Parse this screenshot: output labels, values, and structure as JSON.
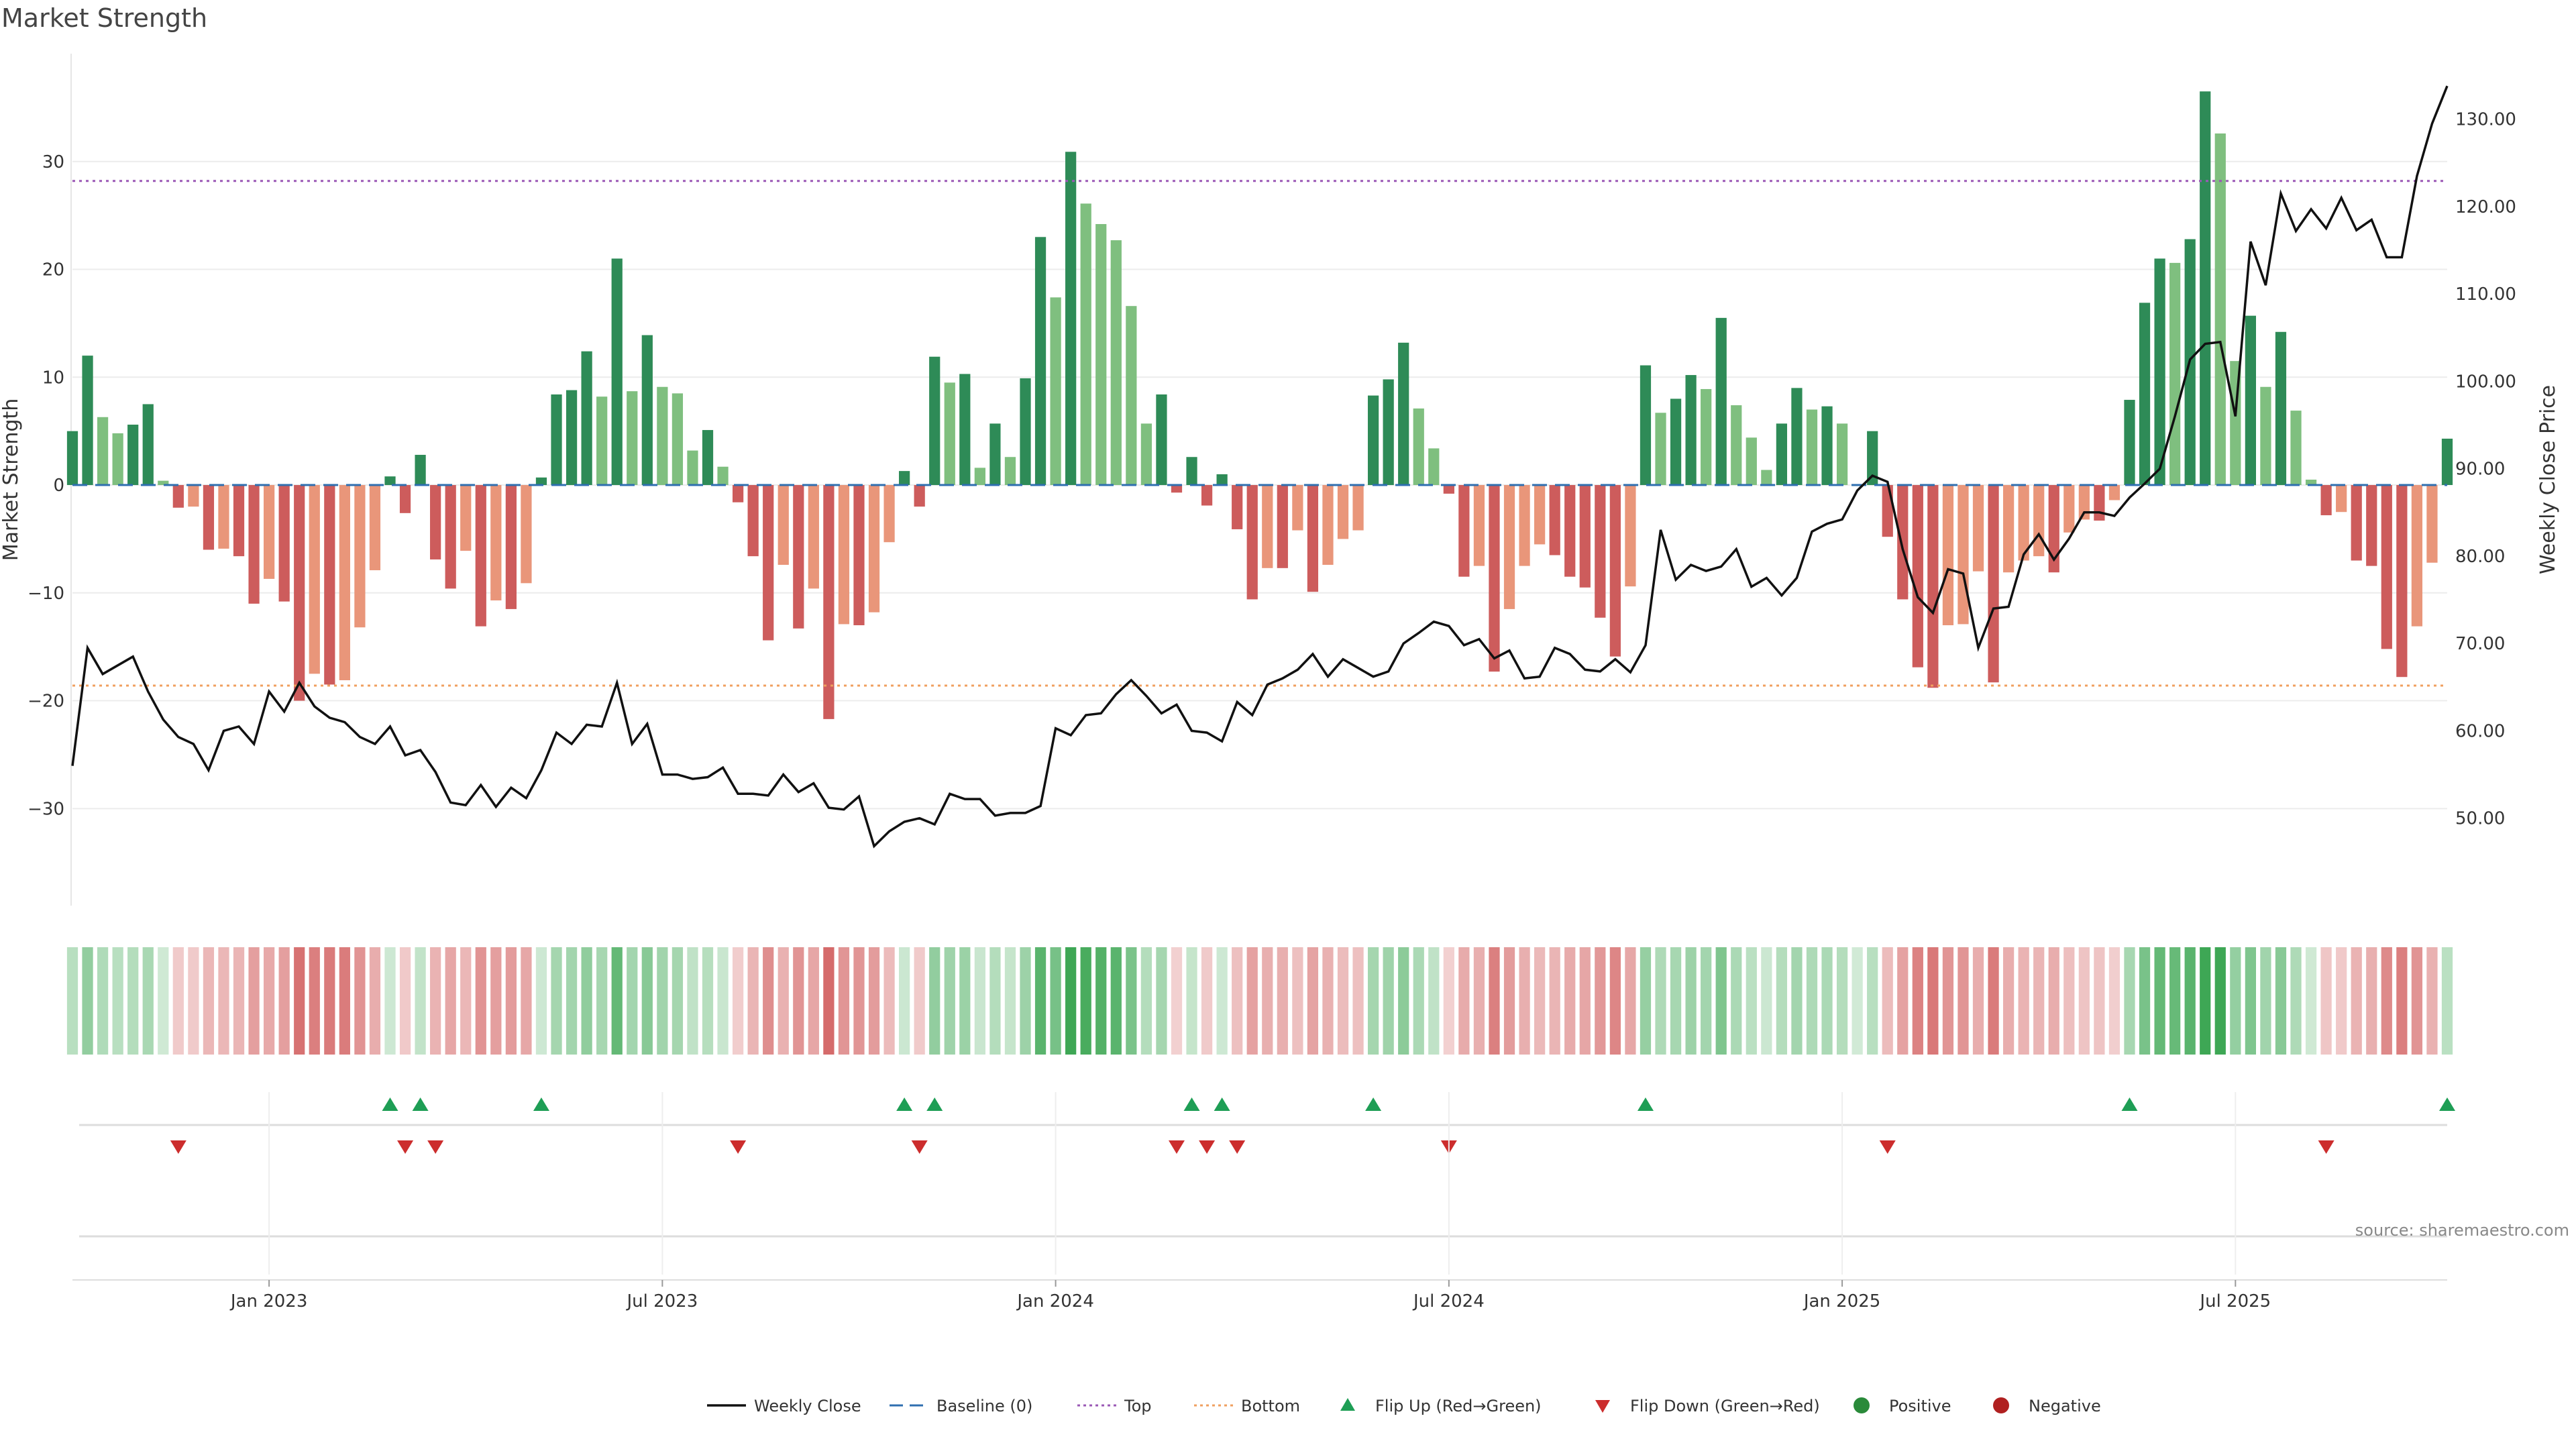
{
  "chart_data": {
    "type": "bar",
    "title": "Market Strength",
    "ylabel_left": "Market Strength",
    "ylabel_right": "Weekly Close Price",
    "y_left_range": [
      -39,
      40
    ],
    "y_left_ticks": [
      30,
      20,
      10,
      0,
      -10,
      -20,
      -30
    ],
    "y_right_range": [
      40,
      137.5
    ],
    "y_right_ticks": [
      130,
      120,
      110,
      100,
      90,
      80,
      70,
      60,
      50
    ],
    "top_level": 28.2,
    "bottom_level": -18.6,
    "x_labels": [
      {
        "label": "Jan 2023",
        "week": 13
      },
      {
        "label": "Jul 2023",
        "week": 39
      },
      {
        "label": "Jan 2024",
        "week": 65
      },
      {
        "label": "Jul 2024",
        "week": 91
      },
      {
        "label": "Jan 2025",
        "week": 117
      },
      {
        "label": "Jul 2025",
        "week": 143
      }
    ],
    "strength": [
      5,
      12,
      6.3,
      4.8,
      5.6,
      7.5,
      0.4,
      -2.1,
      -2,
      -6,
      -5.9,
      -6.6,
      -11,
      -8.7,
      -10.8,
      -20,
      -17.5,
      -18.5,
      -18.1,
      -13.2,
      -7.9,
      0.8,
      -2.6,
      2.8,
      -6.9,
      -9.6,
      -6.1,
      -13.1,
      -10.7,
      -11.5,
      -9.1,
      0.7,
      8.4,
      8.8,
      12.4,
      8.2,
      21,
      8.7,
      13.9,
      9.1,
      8.5,
      3.2,
      5.1,
      1.7,
      -1.6,
      -6.6,
      -14.4,
      -7.4,
      -13.3,
      -9.6,
      -21.7,
      -12.9,
      -13,
      -11.8,
      -5.3,
      1.3,
      -2,
      11.9,
      9.5,
      10.3,
      1.6,
      5.7,
      2.6,
      9.9,
      23,
      17.4,
      30.9,
      26.1,
      24.2,
      22.7,
      16.6,
      5.7,
      8.4,
      -0.7,
      2.6,
      -1.9,
      1,
      -4.1,
      -10.6,
      -7.7,
      -7.7,
      -4.2,
      -9.9,
      -7.4,
      -5,
      -4.2,
      8.3,
      9.8,
      13.2,
      7.1,
      3.4,
      -0.8,
      -8.5,
      -7.5,
      -17.3,
      -11.5,
      -7.5,
      -5.5,
      -6.5,
      -8.5,
      -9.5,
      -12.3,
      -15.9,
      -9.4,
      11.1,
      6.7,
      8,
      10.2,
      8.9,
      15.5,
      7.4,
      4.4,
      1.4,
      5.7,
      9,
      7,
      7.3,
      5.7,
      0,
      5,
      -4.8,
      -10.6,
      -16.9,
      -18.8,
      -13,
      -12.9,
      -8,
      -18.3,
      -8.1,
      -7,
      -6.6,
      -8.1,
      -4.4,
      -3.2,
      -3.3,
      -1.4,
      7.9,
      16.9,
      21,
      20.6,
      22.8,
      36.5,
      32.6,
      11.5,
      15.7,
      9.1,
      14.2,
      6.9,
      0.5,
      -2.8,
      -2.5,
      -7,
      -7.5,
      -15.2,
      -17.8,
      -13.1,
      -7.2,
      4.3
    ],
    "weekly_close": [
      56,
      69.5,
      66.5,
      67.5,
      68.5,
      64.5,
      61.3,
      59.3,
      58.5,
      55.5,
      60,
      60.5,
      58.5,
      64.5,
      62.2,
      65.5,
      62.8,
      61.5,
      61,
      59.3,
      58.5,
      60.5,
      57.2,
      57.8,
      55.3,
      51.8,
      51.5,
      53.8,
      51.3,
      53.5,
      52.3,
      55.5,
      59.8,
      58.5,
      60.7,
      60.5,
      65.5,
      58.5,
      60.8,
      55,
      55,
      54.5,
      54.7,
      55.8,
      52.8,
      52.8,
      52.6,
      55,
      53,
      54,
      51.2,
      51,
      52.5,
      46.8,
      48.5,
      49.6,
      50,
      49.3,
      52.8,
      52.2,
      52.2,
      50.3,
      50.6,
      50.6,
      51.4,
      60.3,
      59.5,
      61.8,
      62,
      64.2,
      65.8,
      64,
      62,
      63,
      60,
      59.8,
      58.8,
      63.3,
      61.8,
      65.3,
      66,
      67,
      68.8,
      66.2,
      68.2,
      67.2,
      66.2,
      66.8,
      70,
      71.2,
      72.5,
      72,
      69.8,
      70.5,
      68.3,
      69.2,
      66,
      66.2,
      69.5,
      68.8,
      67,
      66.8,
      68.2,
      66.7,
      69.8,
      83,
      77.3,
      79,
      78.3,
      78.8,
      80.8,
      76.5,
      77.5,
      75.5,
      77.5,
      82.8,
      83.7,
      84.2,
      87.5,
      89.2,
      88.5,
      80.8,
      75.3,
      73.5,
      78.5,
      78,
      69.5,
      74,
      74.2,
      80.2,
      82.5,
      79.6,
      82,
      85,
      85,
      84.6,
      86.7,
      88.3,
      90,
      96,
      102.5,
      104.3,
      104.5,
      96,
      116,
      111,
      121.5,
      117.2,
      119.7,
      117.5,
      121,
      117.3,
      118.5,
      114.2,
      114.2,
      123.5,
      129.5,
      133.8
    ]
  },
  "legend": [
    {
      "label": "Weekly Close",
      "type": "line-solid",
      "color": "#111111"
    },
    {
      "label": "Baseline (0)",
      "type": "line-dash",
      "color": "#2f6fb0"
    },
    {
      "label": "Top",
      "type": "line-dot",
      "color": "#9b59b6"
    },
    {
      "label": "Bottom",
      "type": "line-dot",
      "color": "#f0a060"
    },
    {
      "label": "Flip Up (Red→Green)",
      "type": "tri-up",
      "color": "#1e9e55"
    },
    {
      "label": "Flip Down (Green→Red)",
      "type": "tri-down",
      "color": "#cc2d2d"
    },
    {
      "label": "Positive",
      "type": "dot",
      "color": "#2a8a3a"
    },
    {
      "label": "Negative",
      "type": "dot",
      "color": "#b02020"
    }
  ],
  "source": "source: sharemaestro.com",
  "colors": {
    "pos_strong": "#2e8b57",
    "pos_light": "#7fbf7f",
    "neg_strong": "#cd5c5c",
    "neg_light": "#e9967a",
    "price_line": "#111111"
  }
}
